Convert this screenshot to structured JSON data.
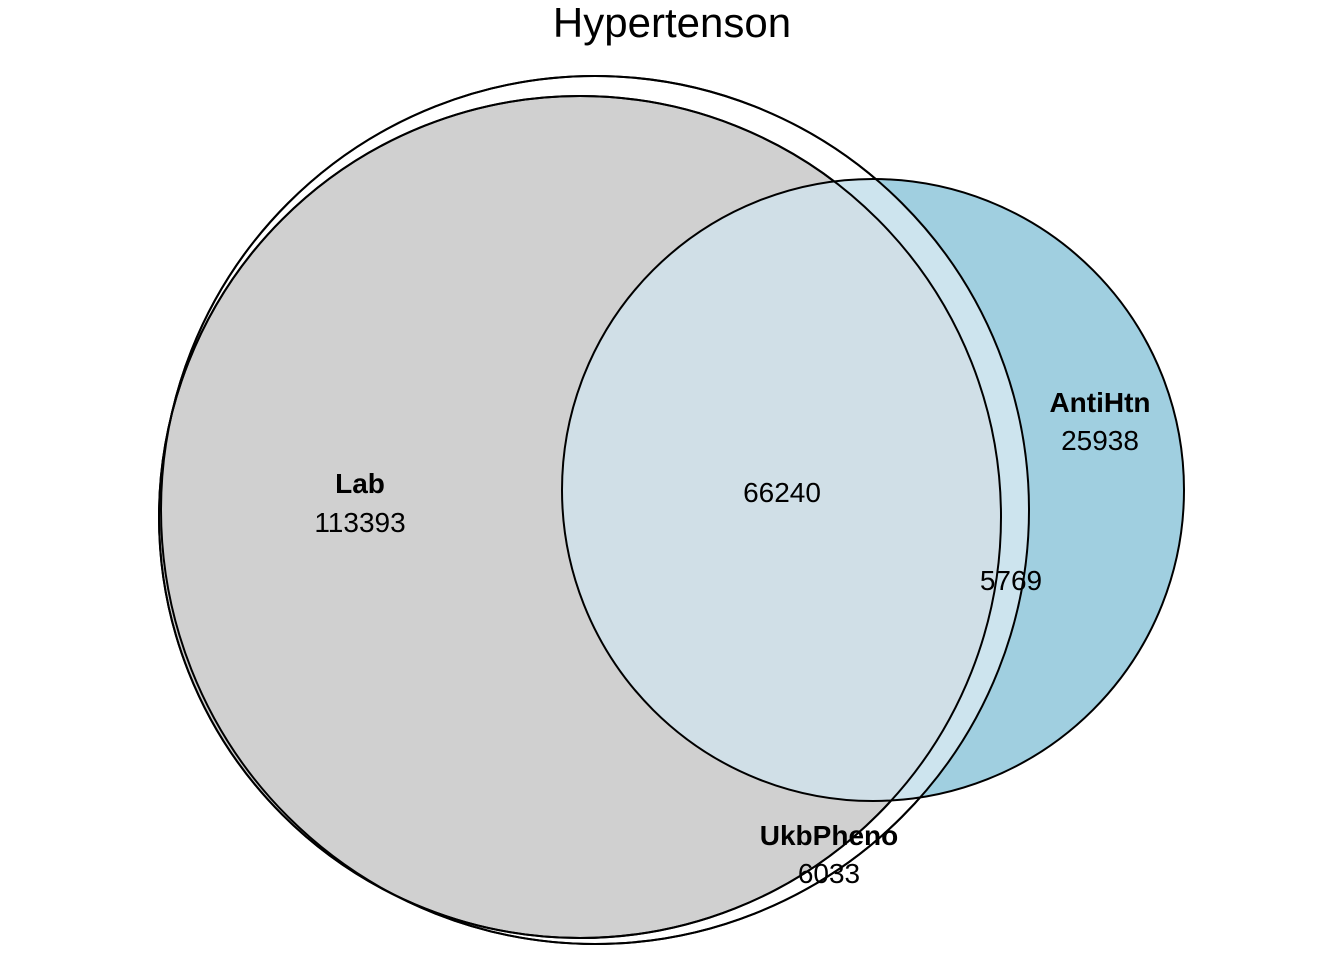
{
  "title": "Hypertenson",
  "colors": {
    "lab": "#d0d0d0",
    "antihtn": "#a0cfe0",
    "overlap": "#d0dfe7",
    "ukbpheno_sliver": "#cde4ee",
    "outline": "#000000"
  },
  "sets": [
    {
      "name": "Lab",
      "count": "113393"
    },
    {
      "name": "UkbPheno",
      "count": "6033"
    },
    {
      "name": "AntiHtn",
      "count": "25938"
    }
  ],
  "intersections": [
    {
      "sets": [
        "Lab",
        "AntiHtn"
      ],
      "count": "66240"
    },
    {
      "sets": [
        "UkbPheno",
        "AntiHtn"
      ],
      "count": "5769"
    }
  ]
}
